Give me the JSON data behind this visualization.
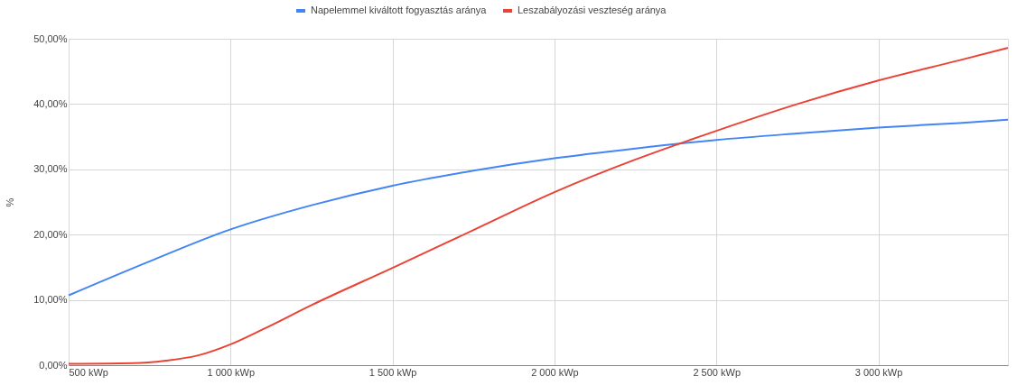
{
  "chart_data": {
    "type": "line",
    "ylabel": "%",
    "legend": "top",
    "grid": true,
    "marker": "none",
    "line_style": "solid",
    "xlim": [
      500,
      3400
    ],
    "ylim": [
      0,
      50
    ],
    "xticks": [
      {
        "value": 500,
        "label": "500 kWp"
      },
      {
        "value": 1000,
        "label": "1 000 kWp"
      },
      {
        "value": 1500,
        "label": "1 500 kWp"
      },
      {
        "value": 2000,
        "label": "2 000 kWp"
      },
      {
        "value": 2500,
        "label": "2 500 kWp"
      },
      {
        "value": 3000,
        "label": "3 000 kWp"
      }
    ],
    "yticks": [
      {
        "value": 0,
        "label": "0,00%"
      },
      {
        "value": 10,
        "label": "10,00%"
      },
      {
        "value": 20,
        "label": "20,00%"
      },
      {
        "value": 30,
        "label": "30,00%"
      },
      {
        "value": 40,
        "label": "40,00%"
      },
      {
        "value": 50,
        "label": "50,00%"
      }
    ],
    "series": [
      {
        "name": "Napelemmel kiváltott fogyasztás aránya",
        "color": "#4285f4",
        "x": [
          500,
          750,
          1000,
          1250,
          1500,
          1750,
          2000,
          2250,
          2500,
          2750,
          3000,
          3250,
          3400
        ],
        "values": [
          10.7,
          15.9,
          20.8,
          24.5,
          27.5,
          29.8,
          31.7,
          33.2,
          34.5,
          35.5,
          36.4,
          37.1,
          37.6
        ]
      },
      {
        "name": "Leszabályozási veszteség aránya",
        "color": "#ea4335",
        "x": [
          500,
          700,
          800,
          900,
          1000,
          1100,
          1250,
          1500,
          1750,
          2000,
          2250,
          2500,
          2750,
          3000,
          3250,
          3400
        ],
        "values": [
          0.2,
          0.3,
          0.7,
          1.5,
          3.2,
          5.5,
          9.2,
          14.9,
          20.7,
          26.5,
          31.5,
          35.9,
          40.0,
          43.6,
          46.7,
          48.6
        ]
      }
    ]
  }
}
